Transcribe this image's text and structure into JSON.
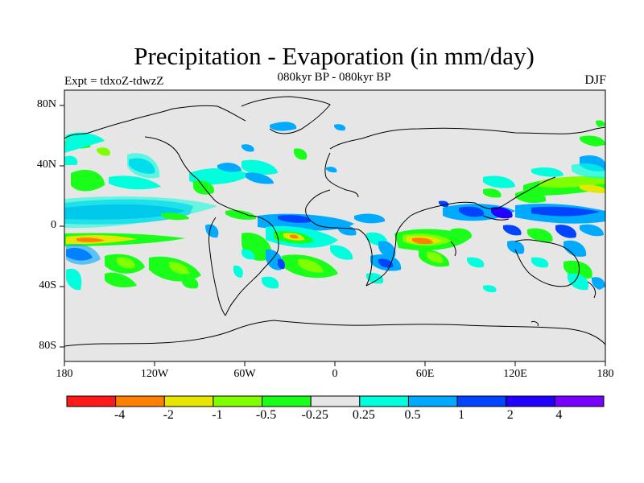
{
  "header": {
    "title": "Precipitation - Evaporation (in mm/day)",
    "subtitle": "080kyr BP - 080kyr BP",
    "experiment": "Expt = tdxoZ-tdwzZ",
    "season": "DJF"
  },
  "axes": {
    "lat_labels": [
      "80N",
      "40N",
      "0",
      "40S",
      "80S"
    ],
    "lon_labels": [
      "180",
      "120W",
      "60W",
      "0",
      "60E",
      "120E",
      "180"
    ]
  },
  "colorbar": {
    "colors": [
      "#ff1a1a",
      "#ff8000",
      "#e6e600",
      "#80ff00",
      "#1aff1a",
      "#e6e6e6",
      "#00ffdd",
      "#00aaff",
      "#0044ff",
      "#2200ff",
      "#7700ff"
    ],
    "labels": [
      "-4",
      "-2",
      "-1",
      "-0.5",
      "-0.25",
      "0.25",
      "0.5",
      "1",
      "2",
      "4"
    ]
  },
  "legend_colors": {
    "land_ocean_background": "#e6e6e6",
    "coast": "#000000"
  }
}
